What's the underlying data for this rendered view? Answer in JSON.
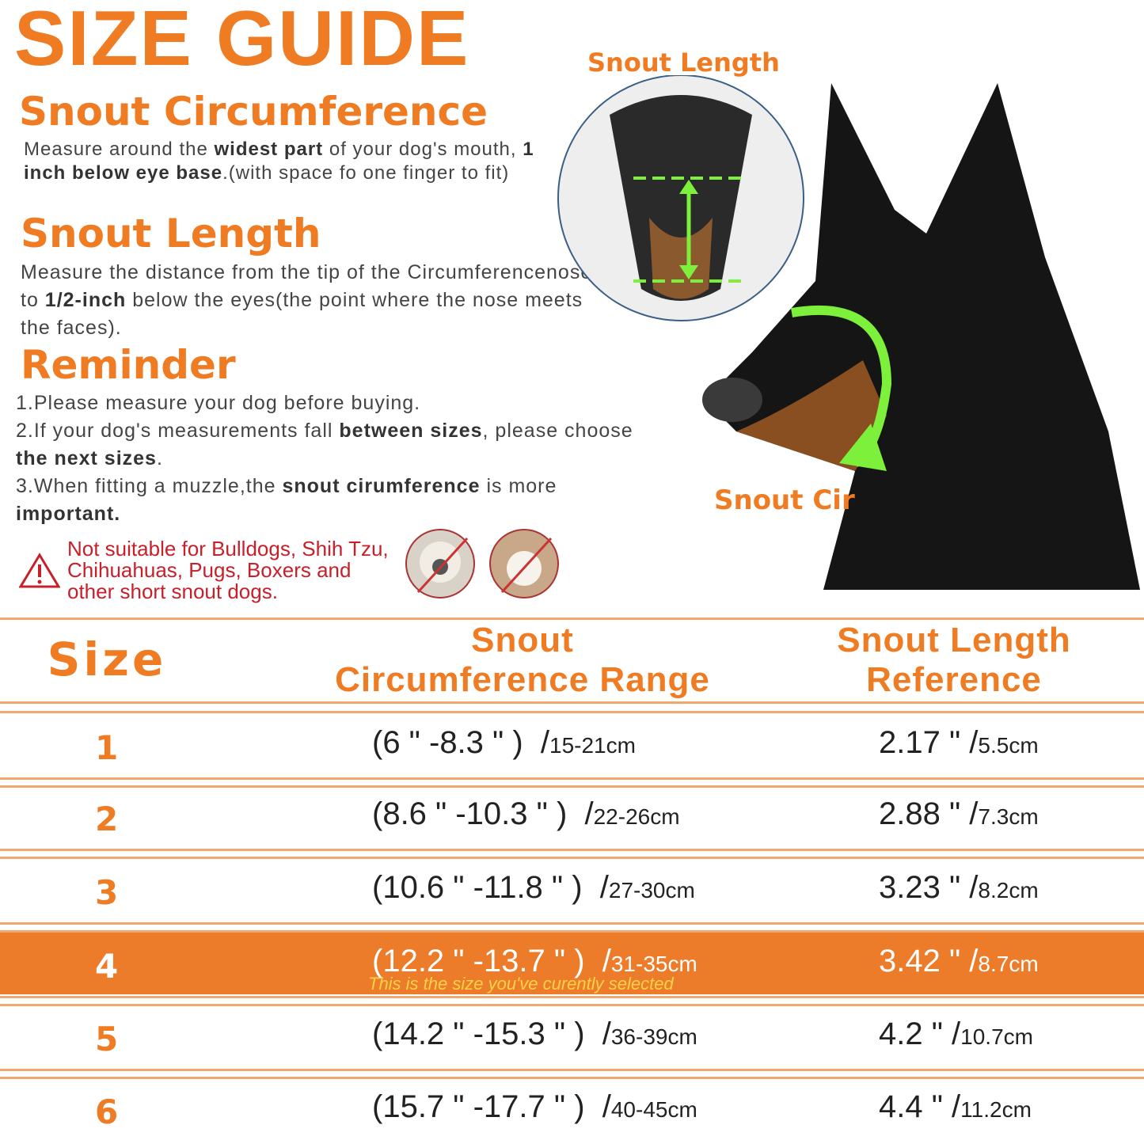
{
  "title": "SIZE GUIDE",
  "image_labels": {
    "snout_length": "Snout  Length",
    "snout_cir": "Snout  Cir"
  },
  "circumference": {
    "heading": "Snout  Circumference",
    "t1": "Measure around the ",
    "b1": "widest part",
    "t2": " of your dog's mouth, ",
    "b2": "1 inch below eye base",
    "t3": ".(with space fo one finger to fit)"
  },
  "length": {
    "heading": "Snout  Length",
    "t1": "Measure the distance from the tip of the Circumferencenose to ",
    "b1": "1/2-inch",
    "t2": " below the eyes(the point where the nose meets the faces)."
  },
  "reminder": {
    "heading": "Reminder",
    "l1": "1.Please measure your dog before buying.",
    "l2a": "2.If your dog's measurements fall ",
    "l2b": "between sizes",
    "l2c": ", please choose ",
    "l2d": "the next sizes",
    "l2e": ".",
    "l3a": "3.When fitting a muzzle,the ",
    "l3b": "snout cirumference",
    "l3c": " is more ",
    "l3d": "important."
  },
  "warning": "Not suitable for Bulldogs, Shih Tzu, Chihuahuas, Pugs, Boxers and other short snout dogs.",
  "table": {
    "headers": {
      "size": "Size",
      "circ1": "Snout",
      "circ2": "Circumference Range",
      "len1": "Snout Length",
      "len2": "Reference"
    },
    "rows": [
      {
        "size": "1",
        "circ": "(6 \" -8.3 \" )  /",
        "circ_cm": "15-21cm",
        "len": "2.17 \" /",
        "len_cm": "5.5cm"
      },
      {
        "size": "2",
        "circ": "(8.6 \" -10.3 \" )  /",
        "circ_cm": "22-26cm",
        "len": "2.88 \" /",
        "len_cm": "7.3cm"
      },
      {
        "size": "3",
        "circ": "(10.6 \" -11.8 \" )  /",
        "circ_cm": "27-30cm",
        "len": "3.23 \" /",
        "len_cm": "8.2cm"
      },
      {
        "size": "4",
        "circ": "(12.2 \" -13.7 \" )  /",
        "circ_cm": "31-35cm",
        "len": "3.42 \" /",
        "len_cm": "8.7cm",
        "note": "This is the size you've curently selected"
      },
      {
        "size": "5",
        "circ": "(14.2 \" -15.3 \" )  /",
        "circ_cm": "36-39cm",
        "len": "4.2 \" /",
        "len_cm": "10.7cm"
      },
      {
        "size": "6",
        "circ": "(15.7 \" -17.7 \" )  /",
        "circ_cm": "40-45cm",
        "len": "4.4 \" /",
        "len_cm": "11.2cm"
      }
    ],
    "selected_size": "4"
  },
  "colors": {
    "accent": "#ef7b22",
    "warning": "#c8202a",
    "arrow": "#7cf03a"
  }
}
